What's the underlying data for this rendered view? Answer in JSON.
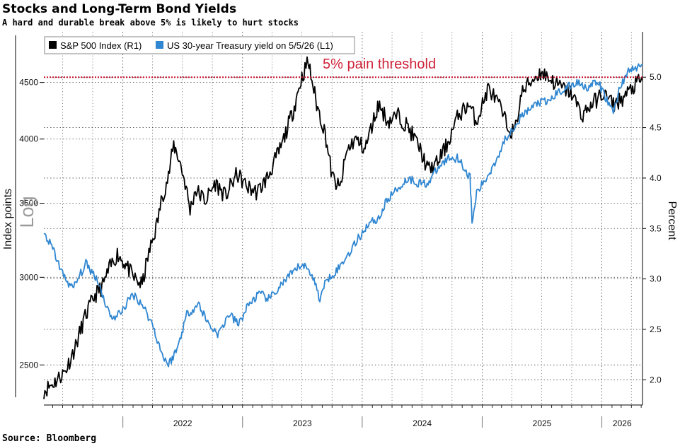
{
  "title": "Stocks and Long-Term Bond Yields",
  "subtitle": "A hard and durable break above 5% is likely to hurt stocks",
  "source": "Source: Bloomberg",
  "chart_data": {
    "type": "line",
    "x_type": "date",
    "xlim": [
      "2021-05-05",
      "2026-05-05"
    ],
    "x_year_labels": [
      "2022",
      "2023",
      "2024",
      "2025",
      "2026"
    ],
    "left_axis": {
      "label": "Index points",
      "scale_label": "Log",
      "scale": "log",
      "range": [
        2300,
        5000
      ],
      "ticks": [
        2500,
        3000,
        3500,
        4000,
        4500
      ]
    },
    "right_axis": {
      "label": "Percent",
      "range": [
        1.75,
        5.45
      ],
      "ticks": [
        "2.0",
        "2.5",
        "3.0",
        "3.5",
        "4.0",
        "4.5",
        "5.0"
      ]
    },
    "grid": true,
    "legend_position": "top-left",
    "colors": {
      "sp500": "#000000",
      "yield": "#2f86d1",
      "threshold": "#c8102e"
    },
    "annotation": {
      "text": "5% pain threshold",
      "axis": "right",
      "value": 5.0
    },
    "series": [
      {
        "name": "S&P 500 Index (R1)",
        "axis": "left",
        "color": "#000000",
        "points": [
          [
            "2021-05-05",
            2370
          ],
          [
            "2021-06-05",
            2410
          ],
          [
            "2021-07-10",
            2470
          ],
          [
            "2021-08-10",
            2600
          ],
          [
            "2021-09-05",
            2750
          ],
          [
            "2021-10-05",
            2880
          ],
          [
            "2021-11-01",
            2950
          ],
          [
            "2021-11-20",
            3050
          ],
          [
            "2021-12-15",
            3150
          ],
          [
            "2022-01-10",
            3080
          ],
          [
            "2022-02-01",
            3000
          ],
          [
            "2022-03-01",
            2950
          ],
          [
            "2022-03-15",
            3100
          ],
          [
            "2022-04-15",
            3350
          ],
          [
            "2022-05-01",
            3550
          ],
          [
            "2022-05-20",
            3700
          ],
          [
            "2022-06-05",
            3950
          ],
          [
            "2022-06-20",
            3850
          ],
          [
            "2022-07-10",
            3650
          ],
          [
            "2022-07-25",
            3450
          ],
          [
            "2022-08-10",
            3600
          ],
          [
            "2022-09-10",
            3520
          ],
          [
            "2022-10-10",
            3650
          ],
          [
            "2022-11-10",
            3550
          ],
          [
            "2022-12-15",
            3720
          ],
          [
            "2023-01-15",
            3620
          ],
          [
            "2023-02-15",
            3580
          ],
          [
            "2023-03-20",
            3700
          ],
          [
            "2023-05-01",
            3950
          ],
          [
            "2023-06-05",
            4250
          ],
          [
            "2023-07-01",
            4550
          ],
          [
            "2023-07-20",
            4700
          ],
          [
            "2023-08-15",
            4300
          ],
          [
            "2023-09-10",
            4050
          ],
          [
            "2023-10-01",
            3700
          ],
          [
            "2023-10-25",
            3600
          ],
          [
            "2023-11-15",
            3900
          ],
          [
            "2023-12-10",
            4000
          ],
          [
            "2024-01-10",
            3920
          ],
          [
            "2024-02-20",
            4300
          ],
          [
            "2024-03-20",
            4150
          ],
          [
            "2024-04-20",
            4200
          ],
          [
            "2024-05-20",
            4100
          ],
          [
            "2024-06-20",
            3950
          ],
          [
            "2024-07-20",
            3750
          ],
          [
            "2024-08-15",
            3800
          ],
          [
            "2024-09-15",
            3950
          ],
          [
            "2024-10-20",
            4200
          ],
          [
            "2024-11-20",
            4300
          ],
          [
            "2024-12-15",
            4150
          ],
          [
            "2025-01-20",
            4450
          ],
          [
            "2025-02-20",
            4300
          ],
          [
            "2025-03-20",
            4100
          ],
          [
            "2025-04-10",
            4050
          ],
          [
            "2025-05-01",
            4400
          ],
          [
            "2025-06-01",
            4520
          ],
          [
            "2025-07-01",
            4600
          ],
          [
            "2025-08-01",
            4520
          ],
          [
            "2025-09-01",
            4450
          ],
          [
            "2025-10-01",
            4400
          ],
          [
            "2025-11-01",
            4200
          ],
          [
            "2025-12-01",
            4300
          ],
          [
            "2026-01-05",
            4400
          ],
          [
            "2026-02-05",
            4300
          ],
          [
            "2026-03-05",
            4350
          ],
          [
            "2026-04-05",
            4450
          ],
          [
            "2026-04-20",
            4500
          ],
          [
            "2026-05-05",
            4520
          ]
        ]
      },
      {
        "name": "US 30-year Treasury yield on 5/5/26 (L1)",
        "axis": "right",
        "color": "#2f86d1",
        "points": [
          [
            "2021-05-05",
            3.45
          ],
          [
            "2021-06-01",
            3.3
          ],
          [
            "2021-07-01",
            3.05
          ],
          [
            "2021-08-01",
            2.9
          ],
          [
            "2021-09-10",
            3.15
          ],
          [
            "2021-10-15",
            3.0
          ],
          [
            "2021-11-15",
            2.7
          ],
          [
            "2021-12-05",
            2.6
          ],
          [
            "2022-01-01",
            2.7
          ],
          [
            "2022-02-01",
            2.85
          ],
          [
            "2022-03-01",
            2.75
          ],
          [
            "2022-04-01",
            2.55
          ],
          [
            "2022-05-01",
            2.25
          ],
          [
            "2022-05-20",
            2.15
          ],
          [
            "2022-06-15",
            2.3
          ],
          [
            "2022-07-15",
            2.65
          ],
          [
            "2022-08-20",
            2.75
          ],
          [
            "2022-09-20",
            2.55
          ],
          [
            "2022-10-20",
            2.45
          ],
          [
            "2022-11-20",
            2.65
          ],
          [
            "2022-12-20",
            2.55
          ],
          [
            "2023-01-20",
            2.75
          ],
          [
            "2023-02-20",
            2.85
          ],
          [
            "2023-03-25",
            2.8
          ],
          [
            "2023-05-01",
            2.95
          ],
          [
            "2023-06-01",
            3.05
          ],
          [
            "2023-07-01",
            3.15
          ],
          [
            "2023-08-01",
            3.05
          ],
          [
            "2023-08-25",
            2.8
          ],
          [
            "2023-09-15",
            3.0
          ],
          [
            "2023-10-20",
            3.1
          ],
          [
            "2023-11-20",
            3.25
          ],
          [
            "2023-12-20",
            3.4
          ],
          [
            "2024-01-20",
            3.55
          ],
          [
            "2024-02-20",
            3.6
          ],
          [
            "2024-03-20",
            3.8
          ],
          [
            "2024-04-20",
            3.9
          ],
          [
            "2024-05-20",
            4.0
          ],
          [
            "2024-06-20",
            3.95
          ],
          [
            "2024-07-20",
            3.95
          ],
          [
            "2024-08-20",
            4.1
          ],
          [
            "2024-09-20",
            4.2
          ],
          [
            "2024-10-20",
            4.2
          ],
          [
            "2024-11-25",
            4.0
          ],
          [
            "2024-12-01",
            3.55
          ],
          [
            "2024-12-15",
            3.85
          ],
          [
            "2025-01-15",
            4.0
          ],
          [
            "2025-02-15",
            4.2
          ],
          [
            "2025-03-15",
            4.4
          ],
          [
            "2025-04-15",
            4.55
          ],
          [
            "2025-05-15",
            4.65
          ],
          [
            "2025-06-20",
            4.75
          ],
          [
            "2025-07-20",
            4.75
          ],
          [
            "2025-08-20",
            4.85
          ],
          [
            "2025-09-20",
            4.9
          ],
          [
            "2025-10-20",
            4.95
          ],
          [
            "2025-11-20",
            4.9
          ],
          [
            "2025-12-20",
            4.95
          ],
          [
            "2026-01-20",
            4.75
          ],
          [
            "2026-02-05",
            4.65
          ],
          [
            "2026-02-25",
            4.9
          ],
          [
            "2026-03-20",
            5.05
          ],
          [
            "2026-04-20",
            5.1
          ],
          [
            "2026-05-05",
            5.12
          ]
        ]
      }
    ]
  }
}
